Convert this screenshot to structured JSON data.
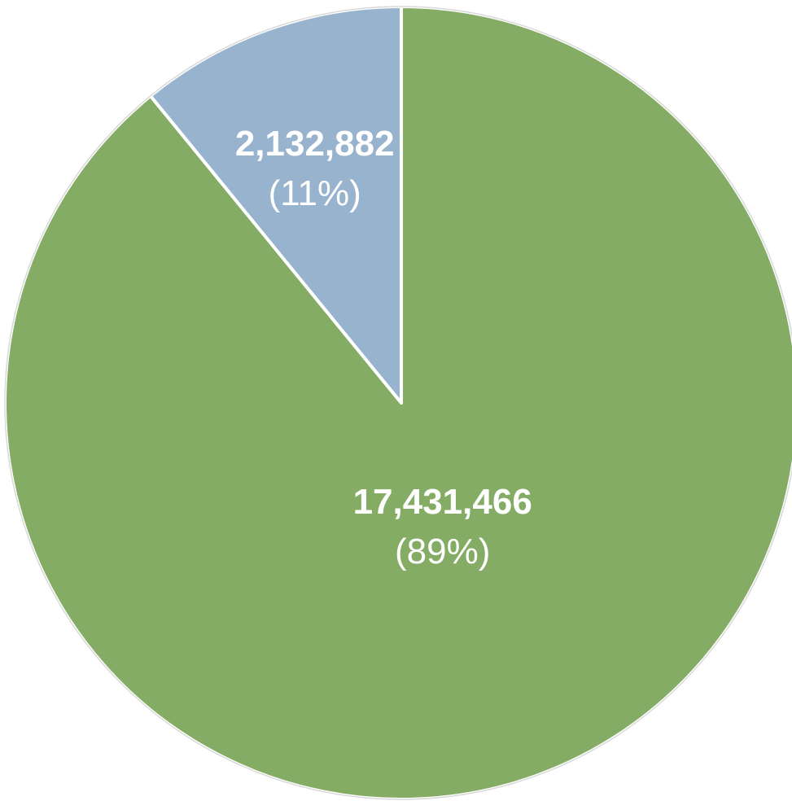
{
  "chart_data": {
    "type": "pie",
    "start_angle": "12 o'clock",
    "direction": "clockwise",
    "slices": [
      {
        "value": 17431466,
        "value_label": "17,431,466",
        "percent_label": "(89%)",
        "color": "#84ac64"
      },
      {
        "value": 2132882,
        "value_label": "2,132,882",
        "percent_label": "(11%)",
        "color": "#97b3cd"
      }
    ]
  }
}
